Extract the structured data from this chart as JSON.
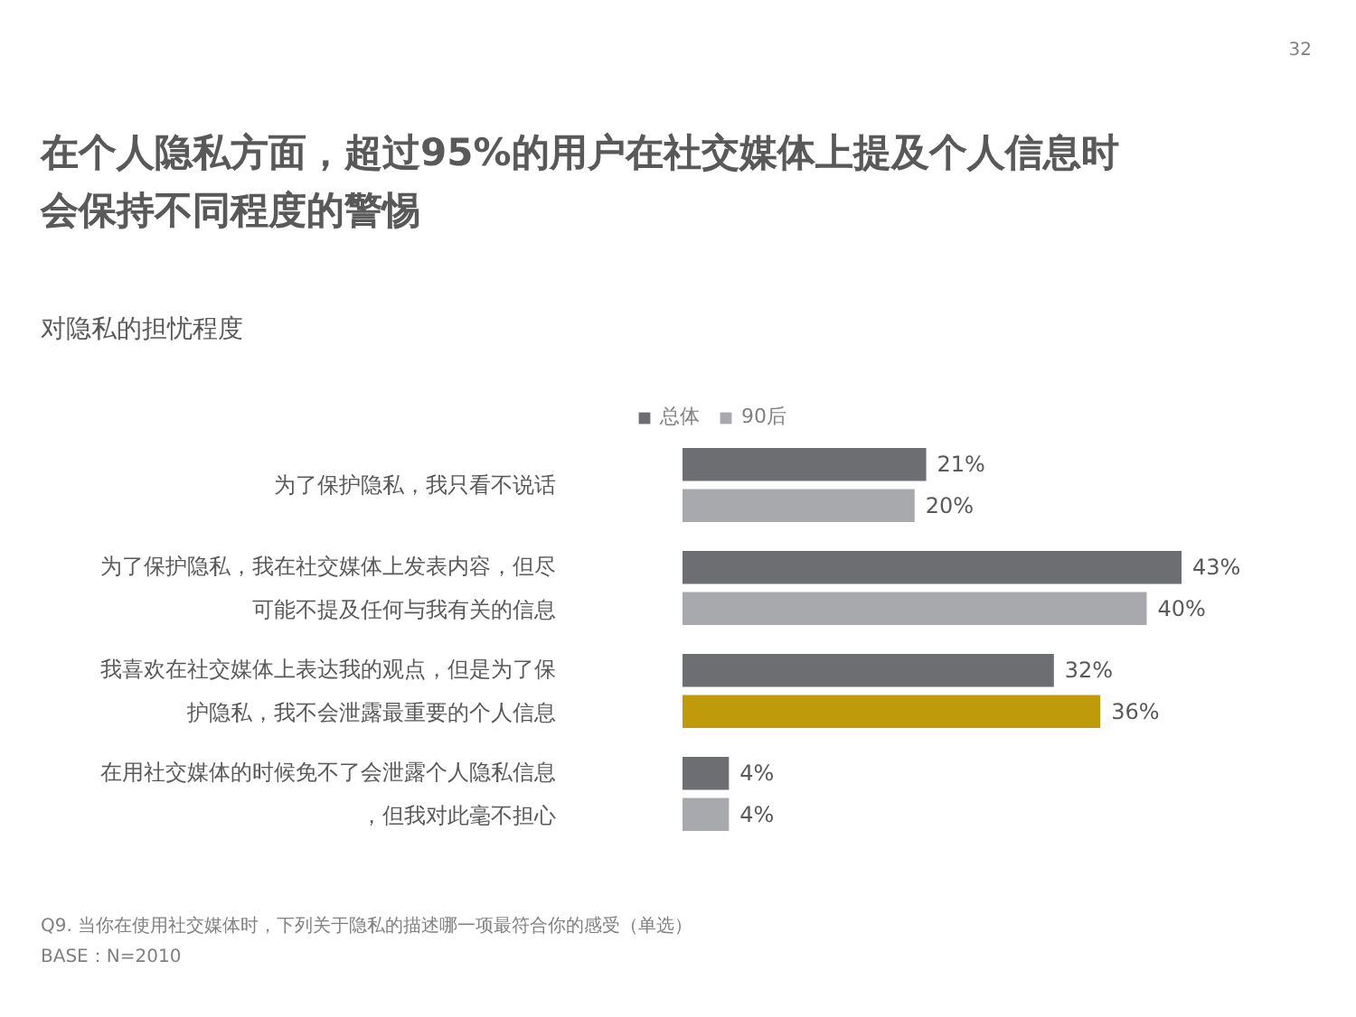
{
  "chart_data": {
    "type": "bar",
    "orientation": "horizontal",
    "title": "在个人隐私方面，超过95%的用户在社交媒体上提及个人信息时会保持不同程度的警惕",
    "subtitle": "对隐私的担忧程度",
    "categories": [
      "为了保护隐私，我只看不说话",
      "为了保护隐私，我在社交媒体上发表内容，但尽可能不提及任何与我有关的信息",
      "我喜欢在社交媒体上表达我的观点，但是为了保护隐私，我不会泄露最重要的个人信息",
      "在用社交媒体的时候免不了会泄露个人隐私信息，但我对此毫不担心"
    ],
    "series": [
      {
        "name": "总体",
        "color": "#6d6e71",
        "values": [
          21,
          43,
          32,
          4
        ],
        "value_labels": [
          "21%",
          "43%",
          "32%",
          "4%"
        ]
      },
      {
        "name": "90后",
        "color": "#a7a9ac",
        "colors": [
          null,
          null,
          "#bf9b0c",
          null
        ],
        "values": [
          20,
          40,
          36,
          4
        ],
        "value_labels": [
          "20%",
          "40%",
          "36%",
          "4%"
        ]
      }
    ],
    "legend": "top",
    "annotations": [
      "32",
      "Q9. 当你在使用社交媒体时，下列关于隐私的描述哪一项最符合你的感受（单选）",
      "BASE：N=2010"
    ]
  }
}
